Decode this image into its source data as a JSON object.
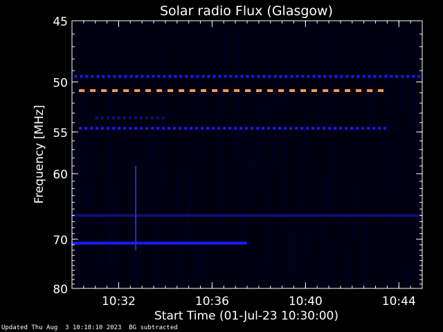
{
  "chart_data": {
    "type": "heatmap",
    "title": "Solar radio Flux (Glasgow)",
    "xlabel": "Start Time (01-Jul-23 10:30:00)",
    "ylabel": "Frequency [MHz]",
    "x_ticks": [
      "10:32",
      "10:36",
      "10:40",
      "10:44"
    ],
    "x_tick_minutes": [
      2,
      6,
      10,
      14
    ],
    "xlim_minutes": [
      0,
      15
    ],
    "y_ticks": [
      45,
      50,
      55,
      60,
      70,
      80
    ],
    "ylim": [
      45,
      80
    ],
    "y_scale": "reciprocal",
    "colors": {
      "background": "#000000",
      "low": "#000033",
      "mid": "#1a1aff",
      "high": "#ff9955",
      "axes": "#ffffff"
    },
    "bands": [
      {
        "freq": 49.5,
        "intensity": "mid",
        "pattern": "dashed",
        "from_min": 0.1,
        "to_min": 15
      },
      {
        "freq": 50.8,
        "intensity": "high",
        "pattern": "dashed",
        "from_min": 0.3,
        "to_min": 13.5
      },
      {
        "freq": 53.5,
        "intensity": "low",
        "pattern": "dashed",
        "from_min": 1.0,
        "to_min": 4.0
      },
      {
        "freq": 54.6,
        "intensity": "mid",
        "pattern": "dashed",
        "from_min": 0.3,
        "to_min": 13.5
      },
      {
        "freq": 66.0,
        "intensity": "low",
        "pattern": "continuous",
        "from_min": 0.0,
        "to_min": 15
      },
      {
        "freq": 70.7,
        "intensity": "mid",
        "pattern": "continuous",
        "from_min": 0.0,
        "to_min": 7.5
      }
    ],
    "burst": {
      "time_min": 2.7,
      "freq_from": 59,
      "freq_to": 72
    }
  },
  "footer": {
    "updated": "Updated Thu Aug  3 10:18:10 2023",
    "note": "BG subtracted"
  }
}
